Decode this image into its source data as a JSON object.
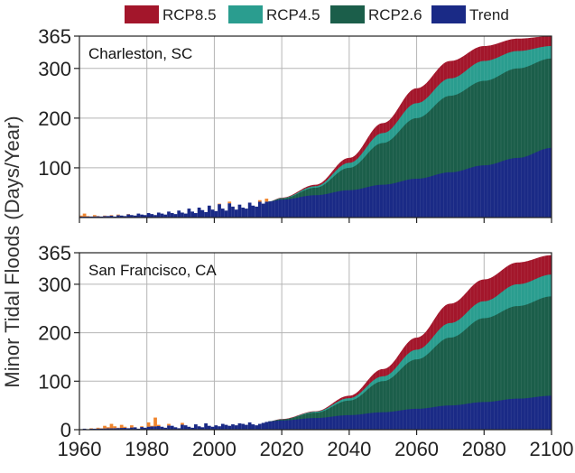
{
  "colors": {
    "rcp85": "#a3162b",
    "rcp45": "#2a9d8f",
    "rcp26": "#1b5e4a",
    "trend": "#1a2a86",
    "observed": "#f0852d",
    "observed_dark": "#1a2a86",
    "grid": "#b5b5b5",
    "frame": "#222222"
  },
  "chart_data": {
    "type": "area",
    "ylabel": "Minor Tidal Floods (Days/Year)",
    "legend": {
      "placement": "top",
      "entries": [
        {
          "key": "rcp85",
          "label": "RCP8.5"
        },
        {
          "key": "rcp45",
          "label": "RCP4.5"
        },
        {
          "key": "rcp26",
          "label": "RCP2.6"
        },
        {
          "key": "trend",
          "label": "Trend"
        }
      ]
    },
    "xlim": [
      1960,
      2100
    ],
    "xticks": [
      1960,
      1980,
      2000,
      2020,
      2040,
      2060,
      2080,
      2100
    ],
    "grid": true,
    "panels": [
      {
        "id": "charleston",
        "title": "Charleston, SC",
        "ylim": [
          0,
          365
        ],
        "yticks": [
          100,
          200,
          300,
          365
        ],
        "xtick_labels_visible": false,
        "observed_start": 1960,
        "observed_values": [
          4,
          8,
          3,
          2,
          5,
          3,
          2,
          4,
          3,
          5,
          2,
          6,
          4,
          3,
          7,
          5,
          4,
          8,
          6,
          5,
          9,
          7,
          5,
          10,
          8,
          6,
          12,
          9,
          7,
          14,
          10,
          8,
          18,
          12,
          9,
          20,
          15,
          11,
          24,
          16,
          13,
          28,
          18,
          14,
          32,
          22,
          16,
          26,
          20,
          18,
          30,
          24,
          22,
          35,
          28,
          38
        ],
        "projection_years": [
          2016,
          2020,
          2030,
          2040,
          2050,
          2060,
          2070,
          2080,
          2090,
          2100
        ],
        "series": [
          {
            "key": "trend",
            "name": "Trend",
            "values": [
              32,
              36,
              45,
              55,
              66,
              78,
              91,
              105,
              120,
              140
            ]
          },
          {
            "key": "rcp26",
            "name": "RCP2.6",
            "values": [
              32,
              38,
              60,
              100,
              150,
              200,
              245,
              275,
              300,
              320
            ]
          },
          {
            "key": "rcp45",
            "name": "RCP4.5",
            "values": [
              32,
              39,
              63,
              110,
              170,
              230,
              280,
              315,
              335,
              345
            ]
          },
          {
            "key": "rcp85",
            "name": "RCP8.5",
            "values": [
              32,
              40,
              66,
              120,
              190,
              260,
              315,
              345,
              360,
              365
            ]
          }
        ]
      },
      {
        "id": "san-francisco",
        "title": "San Francisco, CA",
        "ylim": [
          0,
          365
        ],
        "yticks": [
          0,
          100,
          200,
          300,
          365
        ],
        "xtick_labels_visible": true,
        "observed_start": 1960,
        "observed_values": [
          1,
          2,
          1,
          3,
          2,
          4,
          3,
          8,
          5,
          12,
          7,
          4,
          10,
          6,
          3,
          9,
          5,
          2,
          7,
          4,
          15,
          8,
          25,
          10,
          6,
          4,
          12,
          8,
          5,
          3,
          14,
          9,
          6,
          4,
          11,
          7,
          5,
          13,
          8,
          6,
          9,
          7,
          12,
          10,
          8,
          11,
          9,
          13,
          12,
          10,
          15,
          11,
          9,
          12,
          14,
          16
        ],
        "projection_years": [
          2016,
          2020,
          2030,
          2040,
          2050,
          2060,
          2070,
          2080,
          2090,
          2100
        ],
        "series": [
          {
            "key": "trend",
            "name": "Trend",
            "values": [
              17,
              19,
              24,
              30,
              36,
              43,
              50,
              57,
              64,
              70
            ]
          },
          {
            "key": "rcp26",
            "name": "RCP2.6",
            "values": [
              17,
              21,
              35,
              60,
              100,
              145,
              190,
              230,
              255,
              275
            ]
          },
          {
            "key": "rcp45",
            "name": "RCP4.5",
            "values": [
              17,
              21,
              37,
              65,
              110,
              165,
              220,
              265,
              300,
              320
            ]
          },
          {
            "key": "rcp85",
            "name": "RCP8.5",
            "values": [
              17,
              22,
              38,
              70,
              125,
              190,
              260,
              310,
              345,
              360
            ]
          }
        ]
      }
    ]
  }
}
